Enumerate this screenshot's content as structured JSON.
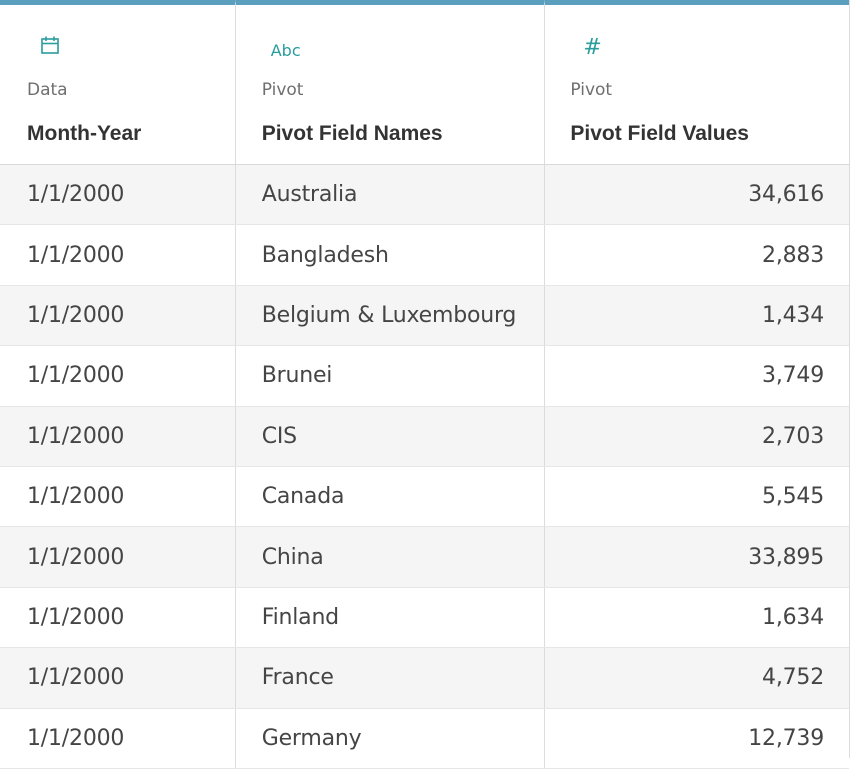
{
  "columns": [
    {
      "icon": "calendar-icon",
      "source": "Data",
      "name": "Month-Year"
    },
    {
      "icon": "abc-string-icon",
      "icon_text": "Abc",
      "source": "Pivot",
      "name": "Pivot Field Names"
    },
    {
      "icon": "hash-number-icon",
      "icon_text": "#",
      "source": "Pivot",
      "name": "Pivot Field Values"
    }
  ],
  "rows": [
    {
      "month_year": "1/1/2000",
      "field_name": "Australia",
      "field_value": "34,616"
    },
    {
      "month_year": "1/1/2000",
      "field_name": "Bangladesh",
      "field_value": "2,883"
    },
    {
      "month_year": "1/1/2000",
      "field_name": "Belgium & Luxembourg",
      "field_value": "1,434"
    },
    {
      "month_year": "1/1/2000",
      "field_name": "Brunei",
      "field_value": "3,749"
    },
    {
      "month_year": "1/1/2000",
      "field_name": "CIS",
      "field_value": "2,703"
    },
    {
      "month_year": "1/1/2000",
      "field_name": "Canada",
      "field_value": "5,545"
    },
    {
      "month_year": "1/1/2000",
      "field_name": "China",
      "field_value": "33,895"
    },
    {
      "month_year": "1/1/2000",
      "field_name": "Finland",
      "field_value": "1,634"
    },
    {
      "month_year": "1/1/2000",
      "field_name": "France",
      "field_value": "4,752"
    },
    {
      "month_year": "1/1/2000",
      "field_name": "Germany",
      "field_value": "12,739"
    }
  ],
  "colors": {
    "header_accent": "#5b9fbf",
    "type_icon": "#2a9d9d",
    "row_alt": "#f5f5f5"
  }
}
